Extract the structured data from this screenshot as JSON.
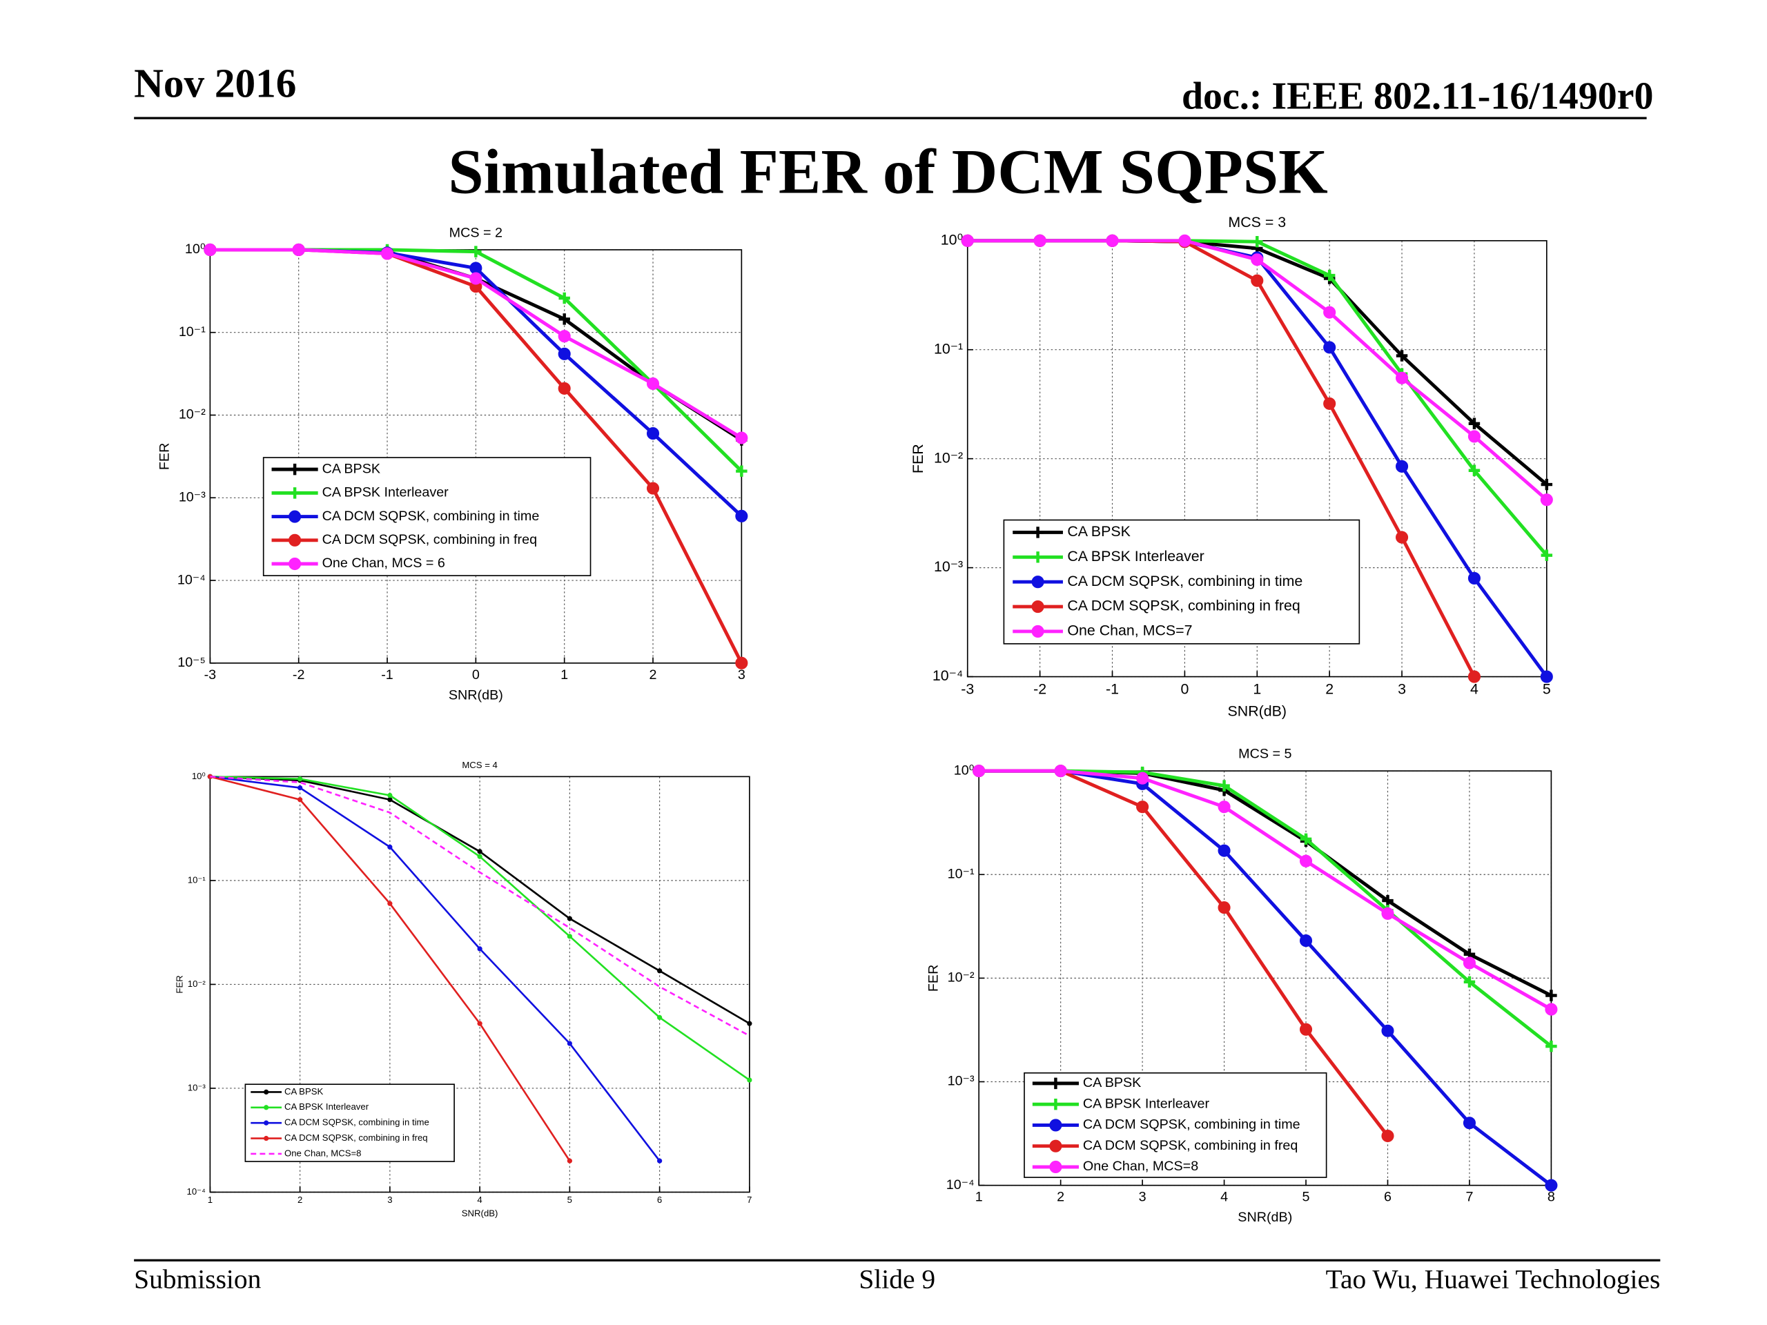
{
  "header": {
    "date": "Nov 2016",
    "doc": "doc.: IEEE 802.11-16/1490r0",
    "title": "Simulated FER of DCM SQPSK"
  },
  "footer": {
    "left": "Submission",
    "center": "Slide 9",
    "right": "Tao Wu, Huawei Technologies"
  },
  "chart_data": [
    {
      "type": "line",
      "title": "MCS = 2",
      "x_label": "SNR(dB)",
      "y_label": "FER",
      "log_y": true,
      "grid": true,
      "legend": "center left",
      "x": [
        -3,
        -2,
        -1,
        0,
        1,
        2,
        3
      ],
      "xlim": [
        -3,
        3
      ],
      "xticks": [
        -3,
        -2,
        -1,
        0,
        1,
        2,
        3
      ],
      "ylim": [
        1e-05,
        1
      ],
      "yticks": [
        {
          "value": 1,
          "label": "10⁰"
        },
        {
          "value": 0.1,
          "label": "10⁻¹"
        },
        {
          "value": 0.01,
          "label": "10⁻²"
        },
        {
          "value": 0.001,
          "label": "10⁻³"
        },
        {
          "value": 0.0001,
          "label": "10⁻⁴"
        },
        {
          "value": 1e-05,
          "label": "10⁻⁵"
        }
      ],
      "series": [
        {
          "name": "CA BPSK",
          "color": "#000000",
          "marker": "plus",
          "values": [
            1,
            1,
            0.95,
            0.45,
            0.145,
            0.024,
            0.005
          ]
        },
        {
          "name": "CA BPSK Interleaver",
          "color": "#22e022",
          "marker": "plus",
          "values": [
            1,
            1,
            1,
            0.95,
            0.26,
            0.024,
            0.0021
          ]
        },
        {
          "name": "CA DCM SQPSK, combining in time",
          "color": "#1010e0",
          "marker": "dot",
          "values": [
            1,
            1,
            0.92,
            0.6,
            0.055,
            0.006,
            0.0006
          ]
        },
        {
          "name": "CA DCM SQPSK, combining in freq",
          "color": "#e02020",
          "marker": "dot",
          "values": [
            1,
            1,
            0.9,
            0.36,
            0.021,
            0.0013,
            1e-05
          ]
        },
        {
          "name": "One Chan, MCS = 6",
          "color": "#ff22ff",
          "marker": "dot",
          "values": [
            1,
            1,
            0.9,
            0.45,
            0.09,
            0.024,
            0.0053
          ]
        }
      ]
    },
    {
      "type": "line",
      "title": "MCS = 3",
      "x_label": "SNR(dB)",
      "y_label": "FER",
      "log_y": true,
      "grid": true,
      "legend": "lower left",
      "x": [
        -3,
        -2,
        -1,
        0,
        1,
        2,
        3,
        4,
        5
      ],
      "xlim": [
        -3,
        5
      ],
      "xticks": [
        -3,
        -2,
        -1,
        0,
        1,
        2,
        3,
        4,
        5
      ],
      "ylim": [
        0.0001,
        1
      ],
      "yticks": [
        {
          "value": 1,
          "label": "10⁰"
        },
        {
          "value": 0.1,
          "label": "10⁻¹"
        },
        {
          "value": 0.01,
          "label": "10⁻²"
        },
        {
          "value": 0.001,
          "label": "10⁻³"
        },
        {
          "value": 0.0001,
          "label": "10⁻⁴"
        }
      ],
      "series": [
        {
          "name": "CA BPSK",
          "color": "#000000",
          "marker": "plus",
          "values": [
            1,
            1,
            1,
            0.98,
            0.85,
            0.45,
            0.088,
            0.021,
            0.0058
          ]
        },
        {
          "name": "CA BPSK Interleaver",
          "color": "#22e022",
          "marker": "plus",
          "values": [
            1,
            1,
            1,
            1,
            0.98,
            0.48,
            0.06,
            0.0078,
            0.0013
          ]
        },
        {
          "name": "CA DCM SQPSK, combining in time",
          "color": "#1010e0",
          "marker": "dot",
          "values": [
            1,
            1,
            1,
            0.98,
            0.7,
            0.105,
            0.0085,
            0.0008,
            0.0001
          ]
        },
        {
          "name": "CA DCM SQPSK, combining in freq",
          "color": "#e02020",
          "marker": "dot",
          "values": [
            1,
            1,
            1,
            0.98,
            0.43,
            0.032,
            0.0019,
            0.0001,
            null
          ]
        },
        {
          "name": "One Chan, MCS=7",
          "color": "#ff22ff",
          "marker": "dot",
          "values": [
            1,
            1,
            1,
            1,
            0.67,
            0.22,
            0.055,
            0.016,
            0.0042
          ]
        }
      ]
    },
    {
      "type": "line",
      "title": "MCS = 4",
      "x_label": "SNR(dB)",
      "y_label": "FER",
      "log_y": true,
      "grid": true,
      "legend": "lower left",
      "x": [
        1,
        2,
        3,
        4,
        5,
        6,
        7
      ],
      "xlim": [
        1,
        7
      ],
      "xticks": [
        1,
        2,
        3,
        4,
        5,
        6,
        7
      ],
      "ylim": [
        0.0001,
        1
      ],
      "yticks": [
        {
          "value": 1,
          "label": "10⁰"
        },
        {
          "value": 0.1,
          "label": "10⁻¹"
        },
        {
          "value": 0.01,
          "label": "10⁻²"
        },
        {
          "value": 0.001,
          "label": "10⁻³"
        },
        {
          "value": 0.0001,
          "label": "10⁻⁴"
        }
      ],
      "series": [
        {
          "name": "CA BPSK",
          "color": "#000000",
          "marker": "small",
          "values": [
            1,
            0.92,
            0.6,
            0.19,
            0.043,
            0.0135,
            0.0042
          ]
        },
        {
          "name": "CA BPSK Interleaver",
          "color": "#22e022",
          "marker": "small",
          "values": [
            1,
            0.95,
            0.66,
            0.17,
            0.029,
            0.0048,
            0.0012
          ]
        },
        {
          "name": "CA DCM SQPSK, combining in time",
          "color": "#1010e0",
          "marker": "small",
          "values": [
            1,
            0.78,
            0.21,
            0.022,
            0.0027,
            0.0002,
            null
          ]
        },
        {
          "name": "CA DCM SQPSK, combining in freq",
          "color": "#e02020",
          "marker": "small",
          "values": [
            1,
            0.6,
            0.06,
            0.0042,
            0.0002,
            null,
            null
          ]
        },
        {
          "name": "One Chan, MCS=8",
          "color": "#ff22ff",
          "marker": "none",
          "dashed": true,
          "values": [
            1,
            0.88,
            0.45,
            0.12,
            0.035,
            0.0095,
            0.0032
          ]
        }
      ]
    },
    {
      "type": "line",
      "title": "MCS = 5",
      "x_label": "SNR(dB)",
      "y_label": "FER",
      "log_y": true,
      "grid": true,
      "legend": "lower left",
      "x": [
        1,
        2,
        3,
        4,
        5,
        6,
        7,
        8
      ],
      "xlim": [
        1,
        8
      ],
      "xticks": [
        1,
        2,
        3,
        4,
        5,
        6,
        7,
        8
      ],
      "ylim": [
        0.0001,
        1
      ],
      "yticks": [
        {
          "value": 1,
          "label": "10⁰"
        },
        {
          "value": 0.1,
          "label": "10⁻¹"
        },
        {
          "value": 0.01,
          "label": "10⁻²"
        },
        {
          "value": 0.001,
          "label": "10⁻³"
        },
        {
          "value": 0.0001,
          "label": "10⁻⁴"
        }
      ],
      "series": [
        {
          "name": "CA BPSK",
          "color": "#000000",
          "marker": "plus",
          "values": [
            1,
            1,
            0.95,
            0.65,
            0.21,
            0.056,
            0.017,
            0.0068
          ]
        },
        {
          "name": "CA BPSK Interleaver",
          "color": "#22e022",
          "marker": "plus",
          "values": [
            1,
            1,
            0.97,
            0.72,
            0.22,
            0.045,
            0.0092,
            0.0022
          ]
        },
        {
          "name": "CA DCM SQPSK, combining in time",
          "color": "#1010e0",
          "marker": "dot",
          "values": [
            1,
            1,
            0.75,
            0.17,
            0.023,
            0.0031,
            0.0004,
            0.0001
          ]
        },
        {
          "name": "CA DCM SQPSK, combining in freq",
          "color": "#e02020",
          "marker": "dot",
          "values": [
            1,
            1,
            0.45,
            0.048,
            0.0032,
            0.0003,
            null,
            null
          ]
        },
        {
          "name": "One Chan, MCS=8",
          "color": "#ff22ff",
          "marker": "dot",
          "values": [
            1,
            1,
            0.85,
            0.45,
            0.135,
            0.042,
            0.014,
            0.005
          ]
        }
      ]
    }
  ]
}
